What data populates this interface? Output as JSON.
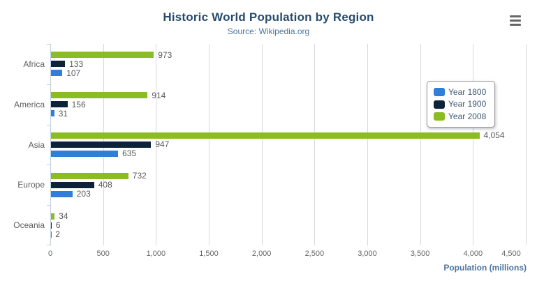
{
  "header": {
    "title": "Historic World Population by Region",
    "subtitle": "Source: Wikipedia.org",
    "export_menu_icon": "hamburger-icon"
  },
  "chart_data": {
    "type": "bar",
    "orientation": "horizontal",
    "title": "Historic World Population by Region",
    "subtitle": "Source: Wikipedia.org",
    "categories": [
      "Africa",
      "America",
      "Asia",
      "Europe",
      "Oceania"
    ],
    "series": [
      {
        "name": "Year 1800",
        "color": "#2f7ed8",
        "values": [
          107,
          31,
          635,
          203,
          2
        ]
      },
      {
        "name": "Year 1900",
        "color": "#0d233a",
        "values": [
          133,
          156,
          947,
          408,
          6
        ]
      },
      {
        "name": "Year 2008",
        "color": "#8bbc21",
        "values": [
          973,
          914,
          4054,
          732,
          34
        ]
      }
    ],
    "bar_order_top_to_bottom": [
      "Year 2008",
      "Year 1900",
      "Year 1800"
    ],
    "data_labels": true,
    "xlabel": "Population (millions)",
    "ylabel": "",
    "xlim": [
      0,
      4500
    ],
    "tick_interval": 500,
    "x_ticks": [
      "0",
      "500",
      "1,000",
      "1,500",
      "2,000",
      "2,500",
      "3,000",
      "3,500",
      "4,000",
      "4,500"
    ],
    "grid": true,
    "legend_position": "right-middle"
  },
  "colors": {
    "title": "#274b6d",
    "subtitle": "#4d759e",
    "axis_title": "#4d759e",
    "axis_labels": "#666666",
    "data_labels": "#5a5a5a",
    "grid_line": "#d8d8d8",
    "axis_line": "#c0d0e0",
    "legend_text": "#3e576f",
    "background": "#ffffff"
  }
}
